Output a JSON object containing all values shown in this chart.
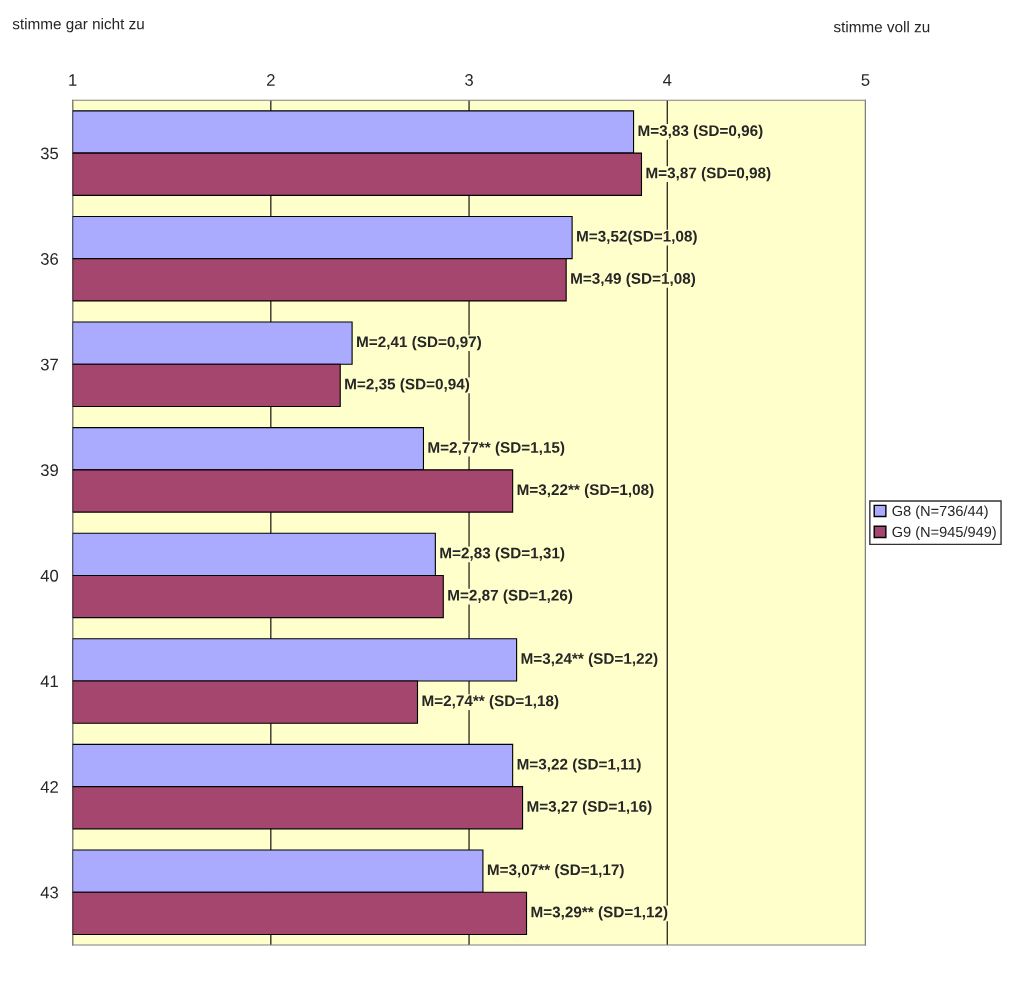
{
  "chart_data": {
    "type": "bar",
    "orientation": "horizontal",
    "categories": [
      "35",
      "36",
      "37",
      "39",
      "40",
      "41",
      "42",
      "43"
    ],
    "series": [
      {
        "name": "G8 (N=736/44)",
        "color": "#aaaaff",
        "values": [
          3.83,
          3.52,
          2.41,
          2.77,
          2.83,
          3.24,
          3.22,
          3.07
        ],
        "value_labels": [
          "M=3,83 (SD=0,96)",
          "M=3,52(SD=1,08)",
          "M=2,41 (SD=0,97)",
          "M=2,77** (SD=1,15)",
          "M=2,83 (SD=1,31)",
          "M=3,24** (SD=1,22)",
          "M=3,22 (SD=1,11)",
          "M=3,07** (SD=1,17)"
        ]
      },
      {
        "name": "G9 (N=945/949)",
        "color": "#a4466e",
        "values": [
          3.87,
          3.49,
          2.35,
          3.22,
          2.87,
          2.74,
          3.27,
          3.29
        ],
        "value_labels": [
          "M=3,87 (SD=0,98)",
          "M=3,49 (SD=1,08)",
          "M=2,35 (SD=0,94)",
          "M=3,22** (SD=1,08)",
          "M=2,87 (SD=1,26)",
          "M=2,74** (SD=1,18)",
          "M=3,27 (SD=1,16)",
          "M=3,29** (SD=1,12)"
        ]
      }
    ],
    "xlim": [
      1,
      5
    ],
    "xticks": [
      1,
      2,
      3,
      4,
      5
    ],
    "annotations": [
      "stimme gar nicht zu",
      "stimme voll zu"
    ],
    "grid": "x",
    "legend": "right"
  }
}
